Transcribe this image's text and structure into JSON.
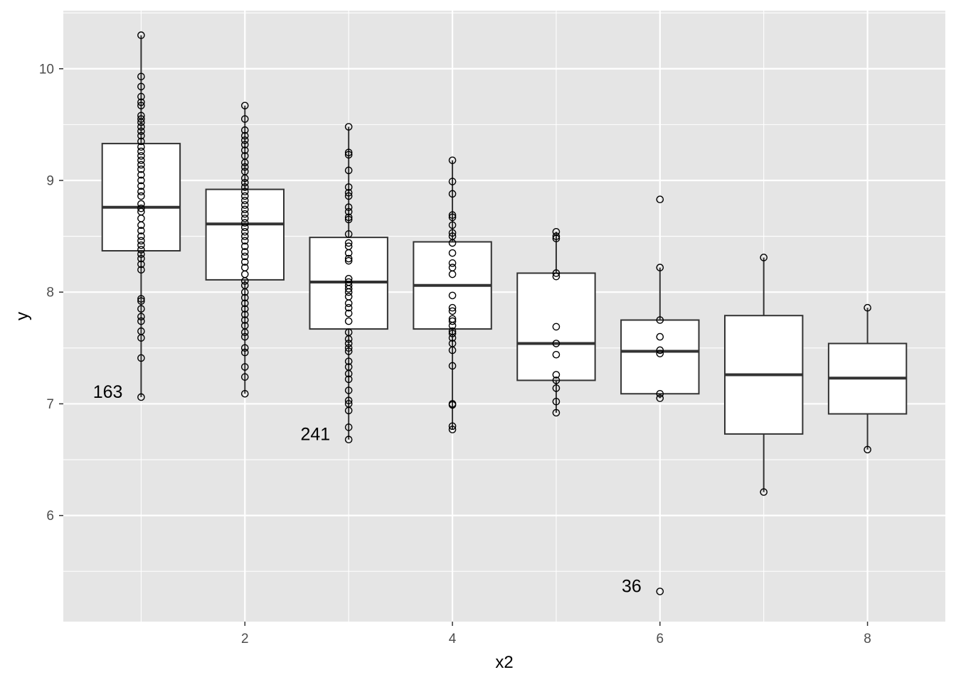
{
  "chart_data": {
    "type": "box",
    "xlabel": "x2",
    "ylabel": "y",
    "xlim": [
      0.25,
      8.75
    ],
    "ylim": [
      5.05,
      10.52
    ],
    "x_ticks": [
      2,
      4,
      6,
      8
    ],
    "y_ticks": [
      6,
      7,
      8,
      9,
      10
    ],
    "grid": true,
    "colors": {
      "panel": "#e5e5e5",
      "grid_major": "#ffffff",
      "box_fill": "#ffffff",
      "box_stroke": "#333333",
      "point_stroke": "#000000",
      "tick_text": "#4d4d4d"
    },
    "boxes": [
      {
        "x": 1,
        "q1": 8.37,
        "median": 8.76,
        "q3": 9.33,
        "whisker_low": 7.06,
        "whisker_high": 10.3
      },
      {
        "x": 2,
        "q1": 8.11,
        "median": 8.61,
        "q3": 8.92,
        "whisker_low": 7.09,
        "whisker_high": 9.67
      },
      {
        "x": 3,
        "q1": 7.67,
        "median": 8.09,
        "q3": 8.49,
        "whisker_low": 6.68,
        "whisker_high": 9.48
      },
      {
        "x": 4,
        "q1": 7.67,
        "median": 8.06,
        "q3": 8.45,
        "whisker_low": 6.77,
        "whisker_high": 9.18
      },
      {
        "x": 5,
        "q1": 7.21,
        "median": 7.54,
        "q3": 8.17,
        "whisker_low": 6.92,
        "whisker_high": 8.54
      },
      {
        "x": 6,
        "q1": 7.09,
        "median": 7.47,
        "q3": 7.75,
        "whisker_low": 7.05,
        "whisker_high": 8.22
      },
      {
        "x": 7,
        "q1": 6.73,
        "median": 7.26,
        "q3": 7.79,
        "whisker_low": 6.21,
        "whisker_high": 8.31
      },
      {
        "x": 8,
        "q1": 6.91,
        "median": 7.23,
        "q3": 7.54,
        "whisker_low": 6.59,
        "whisker_high": 7.86
      }
    ],
    "points": [
      {
        "x": 1,
        "y": [
          10.3,
          9.93,
          9.84,
          9.75,
          9.7,
          9.67,
          9.58,
          9.55,
          9.52,
          9.48,
          9.44,
          9.4,
          9.35,
          9.3,
          9.26,
          9.22,
          9.18,
          9.14,
          9.1,
          9.05,
          9.0,
          8.95,
          8.9,
          8.86,
          8.79,
          8.75,
          8.72,
          8.66,
          8.6,
          8.55,
          8.5,
          8.46,
          8.42,
          8.38,
          8.34,
          8.3,
          8.25,
          8.2,
          7.94,
          7.92,
          7.85,
          7.78,
          7.74,
          7.65,
          7.59,
          7.41,
          7.06
        ]
      },
      {
        "x": 2,
        "y": [
          9.67,
          9.55,
          9.45,
          9.4,
          9.36,
          9.32,
          9.27,
          9.22,
          9.16,
          9.12,
          9.08,
          9.02,
          8.98,
          8.94,
          8.9,
          8.86,
          8.82,
          8.78,
          8.74,
          8.7,
          8.66,
          8.62,
          8.58,
          8.54,
          8.5,
          8.46,
          8.41,
          8.36,
          8.32,
          8.27,
          8.22,
          8.16,
          8.1,
          8.06,
          8.0,
          7.95,
          7.9,
          7.85,
          7.8,
          7.75,
          7.7,
          7.64,
          7.6,
          7.5,
          7.46,
          7.33,
          7.24,
          7.09
        ]
      },
      {
        "x": 3,
        "y": [
          9.48,
          9.25,
          9.23,
          9.09,
          8.94,
          8.89,
          8.86,
          8.76,
          8.72,
          8.67,
          8.65,
          8.52,
          8.44,
          8.41,
          8.35,
          8.3,
          8.28,
          8.12,
          8.09,
          8.06,
          8.03,
          8.0,
          7.96,
          7.9,
          7.86,
          7.81,
          7.74,
          7.64,
          7.58,
          7.54,
          7.5,
          7.47,
          7.38,
          7.33,
          7.27,
          7.22,
          7.12,
          7.03,
          7.0,
          6.94,
          6.79,
          6.68
        ]
      },
      {
        "x": 4,
        "y": [
          9.18,
          8.99,
          8.88,
          8.69,
          8.67,
          8.6,
          8.53,
          8.5,
          8.44,
          8.35,
          8.26,
          8.22,
          8.16,
          7.97,
          7.86,
          7.83,
          7.76,
          7.74,
          7.7,
          7.65,
          7.63,
          7.59,
          7.54,
          7.48,
          7.34,
          7.0,
          6.99,
          6.8,
          6.77
        ]
      },
      {
        "x": 5,
        "y": [
          8.54,
          8.5,
          8.48,
          8.17,
          8.14,
          7.69,
          7.54,
          7.44,
          7.26,
          7.21,
          7.14,
          7.02,
          6.92
        ]
      },
      {
        "x": 6,
        "y": [
          8.83,
          8.22,
          7.75,
          7.6,
          7.48,
          7.45,
          7.09,
          7.05,
          5.32
        ]
      },
      {
        "x": 7,
        "y": [
          8.31,
          6.21
        ]
      },
      {
        "x": 8,
        "y": [
          7.86,
          6.59
        ]
      }
    ],
    "annotations": [
      {
        "label": "163",
        "x": 1,
        "y": 7.06
      },
      {
        "label": "241",
        "x": 3,
        "y": 6.68
      },
      {
        "label": "36",
        "x": 6,
        "y": 5.32
      }
    ]
  }
}
